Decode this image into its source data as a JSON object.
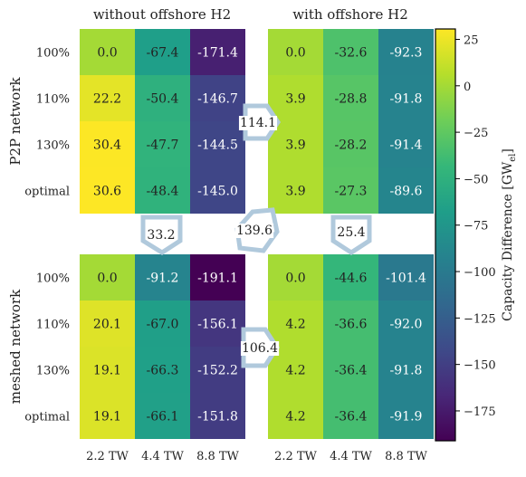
{
  "chart_data": {
    "type": "heatmap",
    "column_titles": [
      "without offshore H2",
      "with offshore H2"
    ],
    "row_group_labels": [
      "P2P network",
      "meshed network"
    ],
    "row_labels": [
      "100%",
      "110%",
      "130%",
      "optimal"
    ],
    "x_tick_labels": [
      "2.2 TW",
      "4.4 TW",
      "8.8 TW"
    ],
    "panels": [
      {
        "row_group": "P2P network",
        "column": "without offshore H2",
        "values": [
          [
            0.0,
            -67.4,
            -171.4
          ],
          [
            22.2,
            -50.4,
            -146.7
          ],
          [
            30.4,
            -47.7,
            -144.5
          ],
          [
            30.6,
            -48.4,
            -145.0
          ]
        ],
        "labels": [
          [
            "0.0",
            "-67.4",
            "-171.4"
          ],
          [
            "22.2",
            "-50.4",
            "-146.7"
          ],
          [
            "30.4",
            "-47.7",
            "-144.5"
          ],
          [
            "30.6",
            "-48.4",
            "-145.0"
          ]
        ]
      },
      {
        "row_group": "P2P network",
        "column": "with offshore H2",
        "values": [
          [
            0.0,
            -32.6,
            -92.3
          ],
          [
            3.9,
            -28.8,
            -91.8
          ],
          [
            3.9,
            -28.2,
            -91.4
          ],
          [
            3.9,
            -27.3,
            -89.6
          ]
        ],
        "labels": [
          [
            "0.0",
            "-32.6",
            "-92.3"
          ],
          [
            "3.9",
            "-28.8",
            "-91.8"
          ],
          [
            "3.9",
            "-28.2",
            "-91.4"
          ],
          [
            "3.9",
            "-27.3",
            "-89.6"
          ]
        ]
      },
      {
        "row_group": "meshed network",
        "column": "without offshore H2",
        "values": [
          [
            0.0,
            -91.2,
            -191.1
          ],
          [
            20.1,
            -67.0,
            -156.1
          ],
          [
            19.1,
            -66.3,
            -152.2
          ],
          [
            19.1,
            -66.1,
            -151.8
          ]
        ],
        "labels": [
          [
            "0.0",
            "-91.2",
            "-191.1"
          ],
          [
            "20.1",
            "-67.0",
            "-156.1"
          ],
          [
            "19.1",
            "-66.3",
            "-152.2"
          ],
          [
            "19.1",
            "-66.1",
            "-151.8"
          ]
        ]
      },
      {
        "row_group": "meshed network",
        "column": "with offshore H2",
        "values": [
          [
            0.0,
            -44.6,
            -101.4
          ],
          [
            4.2,
            -36.6,
            -92.0
          ],
          [
            4.2,
            -36.4,
            -91.8
          ],
          [
            4.2,
            -36.4,
            -91.9
          ]
        ],
        "labels": [
          [
            "0.0",
            "-44.6",
            "-101.4"
          ],
          [
            "4.2",
            "-36.6",
            "-92.0"
          ],
          [
            "4.2",
            "-36.4",
            "-91.8"
          ],
          [
            "4.2",
            "-36.4",
            "-91.9"
          ]
        ]
      }
    ],
    "arrows": [
      {
        "label": "114.1",
        "from": "P2P network / without offshore H2",
        "to": "P2P network / with offshore H2"
      },
      {
        "label": "106.4",
        "from": "meshed network / without offshore H2",
        "to": "meshed network / with offshore H2"
      },
      {
        "label": "33.2",
        "from": "P2P network / without offshore H2",
        "to": "meshed network / without offshore H2"
      },
      {
        "label": "25.4",
        "from": "P2P network / with offshore H2",
        "to": "meshed network / with offshore H2"
      },
      {
        "label": "139.6",
        "from": "P2P network / without offshore H2",
        "to": "meshed network / with offshore H2"
      }
    ],
    "colorbar": {
      "colormap": "viridis",
      "range": [
        -191.1,
        30.6
      ],
      "ticks": [
        25,
        0,
        -25,
        -50,
        -75,
        -100,
        -125,
        -150,
        -175
      ],
      "tick_labels": [
        "25",
        "0",
        "−25",
        "−50",
        "−75",
        "−100",
        "−125",
        "−150",
        "−175"
      ],
      "label_main": "Capacity Difference [GW",
      "label_sub": "el",
      "label_close": "]"
    },
    "arrow_color": "#b0c9dc"
  }
}
